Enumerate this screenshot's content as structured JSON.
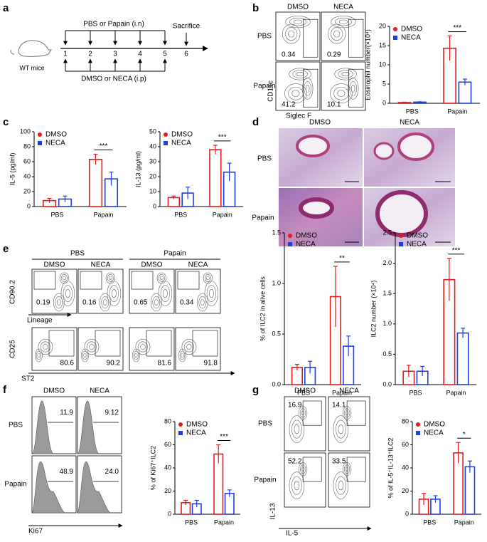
{
  "panels": {
    "a": {
      "letter": "a",
      "top_label": "PBS or Papain (i.n)",
      "sacrifice": "Sacrifice",
      "days": [
        "1",
        "2",
        "3",
        "4",
        "5",
        "6"
      ],
      "bottom_label": "DMSO or NECA (i.p)",
      "mouse": "WT mice"
    },
    "b": {
      "letter": "b",
      "flow": {
        "columns": [
          "DMSO",
          "NECA"
        ],
        "rows": [
          "PBS",
          "Papain"
        ],
        "gates": [
          [
            "0.34",
            "0.29"
          ],
          [
            "41.2",
            "10.1"
          ]
        ],
        "y_axis": "CD11c",
        "x_axis": "Siglec F"
      },
      "chart": {
        "type": "bar",
        "ylabel": "Eosinophil number(×10⁴)",
        "ylim": [
          0,
          20
        ],
        "yticks": [
          0,
          5,
          10,
          15,
          20
        ],
        "categories": [
          "PBS",
          "Papain"
        ],
        "series": [
          {
            "name": "DMSO",
            "color": "#e41a1c",
            "marker": "circle",
            "values": [
              0.2,
              14.3
            ],
            "errors": [
              0.1,
              3.2
            ]
          },
          {
            "name": "NECA",
            "color": "#1f3fe0",
            "marker": "square",
            "values": [
              0.3,
              5.5
            ],
            "errors": [
              0.1,
              0.8
            ]
          }
        ],
        "significance": "***"
      }
    },
    "c": {
      "letter": "c",
      "charts": [
        {
          "type": "bar",
          "ylabel": "IL-5 (pg/ml)",
          "ylim": [
            0,
            100
          ],
          "yticks": [
            0,
            20,
            40,
            60,
            80,
            100
          ],
          "categories": [
            "PBS",
            "Papain"
          ],
          "series": [
            {
              "name": "DMSO",
              "color": "#e41a1c",
              "marker": "circle",
              "values": [
                8,
                63
              ],
              "errors": [
                3,
                7
              ]
            },
            {
              "name": "NECA",
              "color": "#1f3fe0",
              "marker": "square",
              "values": [
                10,
                37
              ],
              "errors": [
                4,
                9
              ]
            }
          ],
          "significance": "***"
        },
        {
          "type": "bar",
          "ylabel": "IL-13 (pg/ml)",
          "ylim": [
            0,
            50
          ],
          "yticks": [
            0,
            10,
            20,
            30,
            40,
            50
          ],
          "categories": [
            "PBS",
            "Papain"
          ],
          "series": [
            {
              "name": "DMSO",
              "color": "#e41a1c",
              "marker": "circle",
              "values": [
                6,
                38
              ],
              "errors": [
                1,
                3
              ]
            },
            {
              "name": "NECA",
              "color": "#1f3fe0",
              "marker": "square",
              "values": [
                9,
                23
              ],
              "errors": [
                4,
                6
              ]
            }
          ],
          "significance": "***"
        }
      ]
    },
    "d": {
      "letter": "d",
      "columns": [
        "DMSO",
        "NECA"
      ],
      "rows": [
        "PBS",
        "Papain"
      ]
    },
    "e": {
      "letter": "e",
      "flow": {
        "groups": [
          "PBS",
          "Papain"
        ],
        "columns": [
          "DMSO",
          "NECA",
          "DMSO",
          "NECA"
        ],
        "top_y": "CD90.2",
        "top_x": "Lineage",
        "top_gates": [
          "0.19",
          "0.16",
          "0.65",
          "0.34"
        ],
        "bottom_y": "CD25",
        "bottom_x": "ST2",
        "bottom_gates": [
          "80.6",
          "90.2",
          "81.6",
          "91.8"
        ]
      },
      "charts": [
        {
          "type": "bar",
          "ylabel": "% of ILC2 in alive cells",
          "ylim": [
            0,
            1.5
          ],
          "yticks": [
            {
              "value": 0,
              "label": "0.0"
            },
            0.5,
            {
              "value": 1,
              "label": "1.0"
            },
            1.5
          ],
          "categories": [
            "PBS",
            "Papain"
          ],
          "series": [
            {
              "name": "DMSO",
              "color": "#e41a1c",
              "marker": "circle",
              "values": [
                0.17,
                0.87
              ],
              "errors": [
                0.03,
                0.3
              ]
            },
            {
              "name": "NECA",
              "color": "#1f3fe0",
              "marker": "square",
              "values": [
                0.17,
                0.38
              ],
              "errors": [
                0.06,
                0.1
              ]
            }
          ],
          "significance": "**"
        },
        {
          "type": "bar",
          "ylabel": "ILC2 number (×10⁴)",
          "ylim": [
            0,
            2.5
          ],
          "yticks": [
            {
              "value": 0,
              "label": "0.0"
            },
            0.5,
            {
              "value": 1,
              "label": "1.0"
            },
            1.5,
            {
              "value": 2,
              "label": "2.0"
            },
            2.5
          ],
          "categories": [
            "PBS",
            "Papain"
          ],
          "series": [
            {
              "name": "DMSO",
              "color": "#e41a1c",
              "marker": "circle",
              "values": [
                0.22,
                1.73
              ],
              "errors": [
                0.1,
                0.35
              ]
            },
            {
              "name": "NECA",
              "color": "#1f3fe0",
              "marker": "square",
              "values": [
                0.22,
                0.85
              ],
              "errors": [
                0.08,
                0.08
              ]
            }
          ],
          "significance": "***"
        }
      ]
    },
    "f": {
      "letter": "f",
      "flow": {
        "columns": [
          "DMSO",
          "NECA"
        ],
        "rows": [
          "PBS",
          "Papain"
        ],
        "gates": [
          [
            "11.9",
            "9.12"
          ],
          [
            "48.9",
            "24.0"
          ]
        ],
        "x_axis": "Ki67"
      },
      "chart": {
        "type": "bar",
        "ylabel": "% of Ki67⁺ILC2",
        "ylim": [
          0,
          80
        ],
        "yticks": [
          0,
          20,
          40,
          60,
          80
        ],
        "categories": [
          "PBS",
          "Papain"
        ],
        "series": [
          {
            "name": "DMSO",
            "color": "#e41a1c",
            "marker": "circle",
            "values": [
              10,
              52
            ],
            "errors": [
              2,
              8
            ]
          },
          {
            "name": "NECA",
            "color": "#1f3fe0",
            "marker": "square",
            "values": [
              9,
              18
            ],
            "errors": [
              3,
              3
            ]
          }
        ],
        "significance": "***"
      }
    },
    "g": {
      "letter": "g",
      "flow": {
        "columns": [
          "DMSO",
          "NECA"
        ],
        "rows": [
          "PBS",
          "Papain"
        ],
        "gates": [
          [
            "16.9",
            "14.1"
          ],
          [
            "52.2",
            "33.5"
          ]
        ],
        "y_axis": "IL-13",
        "x_axis": "IL-5"
      },
      "chart": {
        "type": "bar",
        "ylabel": "% of IL-5⁺IL-13⁺ILC2",
        "ylim": [
          0,
          80
        ],
        "yticks": [
          0,
          20,
          40,
          60,
          80
        ],
        "categories": [
          "PBS",
          "Papain"
        ],
        "series": [
          {
            "name": "DMSO",
            "color": "#e41a1c",
            "marker": "circle",
            "values": [
              13,
              53
            ],
            "errors": [
              5,
              9
            ]
          },
          {
            "name": "NECA",
            "color": "#1f3fe0",
            "marker": "square",
            "values": [
              13,
              41
            ],
            "errors": [
              3,
              5
            ]
          }
        ],
        "significance": "*"
      }
    }
  }
}
